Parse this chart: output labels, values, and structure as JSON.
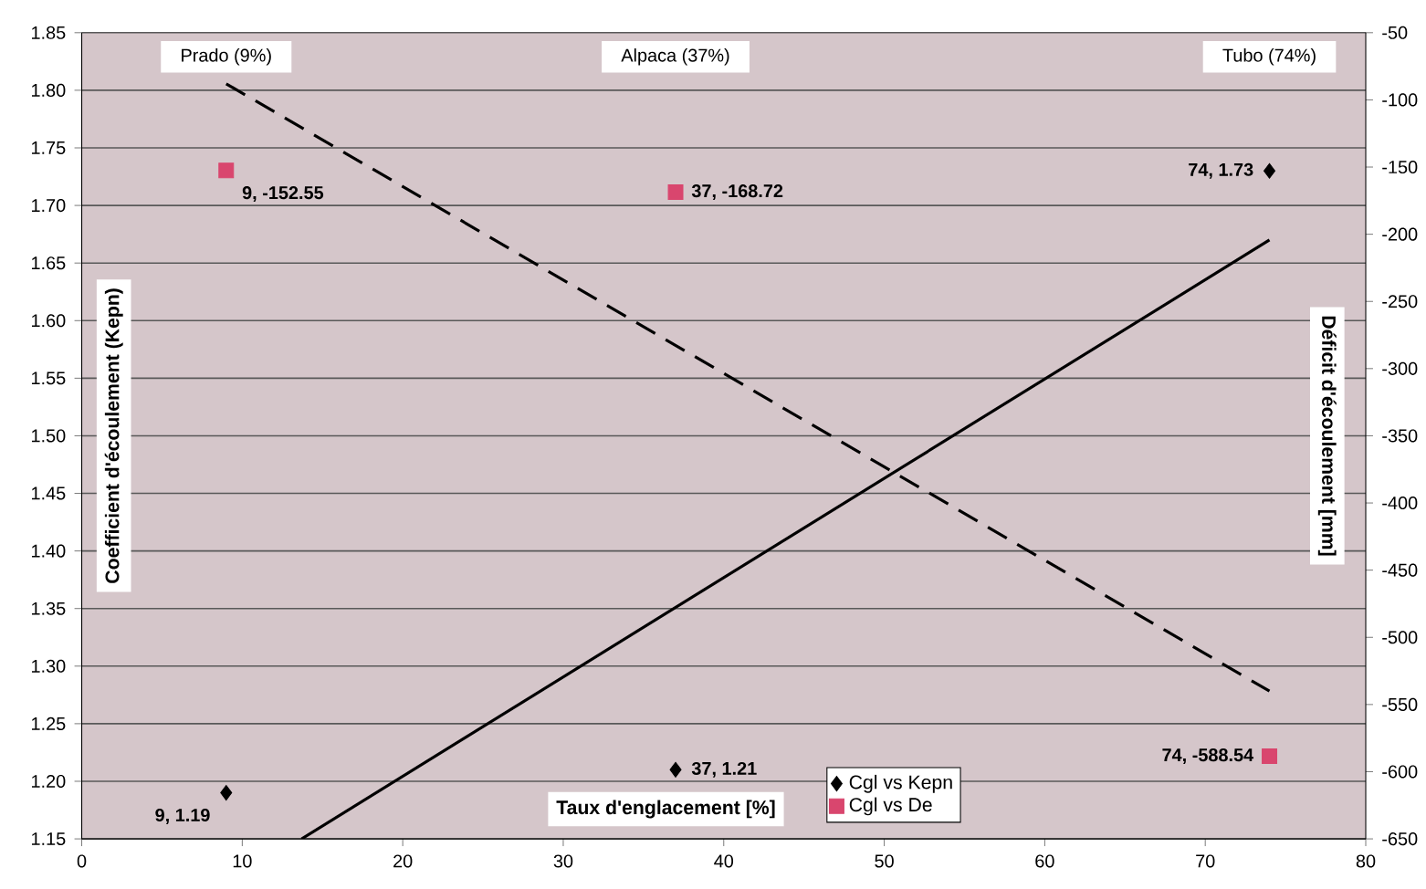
{
  "chart_data": {
    "type": "scatter",
    "xlabel": "Taux d'englacement [%]",
    "ylabel": "Coefficient d'écoulement (Kepn)",
    "y2label": "Déficit d'écoulement [mm]",
    "series": [
      {
        "name": "Cgl vs Kepn",
        "color": "#000000",
        "marker": "diamond",
        "x": [
          9,
          37,
          74
        ],
        "values": [
          1.19,
          1.21,
          1.73
        ],
        "value_labels": [
          "9, 1.19",
          "37, 1.21",
          "74, 1.73"
        ]
      },
      {
        "name": "Cgl vs De",
        "axis": "y2",
        "color": "#d9466e",
        "marker": "square",
        "x": [
          9,
          37,
          74
        ],
        "values": [
          -152.55,
          -168.72,
          -588.54
        ],
        "value_labels": [
          "9, -152.55",
          "37, -168.72",
          "74, -588.54"
        ]
      },
      {
        "type": "line",
        "color": "#000000",
        "line_style": "solid",
        "x": [
          13.7,
          74
        ],
        "values": [
          1.15,
          1.67
        ]
      },
      {
        "type": "line",
        "axis": "y2",
        "color": "#000000",
        "line_style": "dashed",
        "x": [
          9,
          74
        ],
        "values": [
          -88,
          -540
        ]
      }
    ],
    "xlim": [
      0,
      80
    ],
    "xticks": [
      0,
      10,
      20,
      30,
      40,
      50,
      60,
      70,
      80
    ],
    "ylim": [
      1.15,
      1.85
    ],
    "yticks": [
      1.15,
      {
        "value": 1.2,
        "label": "1.20"
      },
      1.25,
      {
        "value": 1.3,
        "label": "1.30"
      },
      1.35,
      {
        "value": 1.4,
        "label": "1.40"
      },
      1.45,
      {
        "value": 1.5,
        "label": "1.50"
      },
      1.55,
      {
        "value": 1.6,
        "label": "1.60"
      },
      1.65,
      {
        "value": 1.7,
        "label": "1.70"
      },
      1.75,
      {
        "value": 1.8,
        "label": "1.80"
      },
      1.85
    ],
    "y2lim": [
      -650,
      -50
    ],
    "y2ticks": [
      -650,
      -600,
      -550,
      -500,
      -450,
      -400,
      -350,
      -300,
      -250,
      -200,
      -150,
      -100,
      -50
    ],
    "annotations": [
      "Prado (9%)",
      "Alpaca (37%)",
      "Tubo (74%)"
    ],
    "grid": "y",
    "legend": "bottom"
  }
}
